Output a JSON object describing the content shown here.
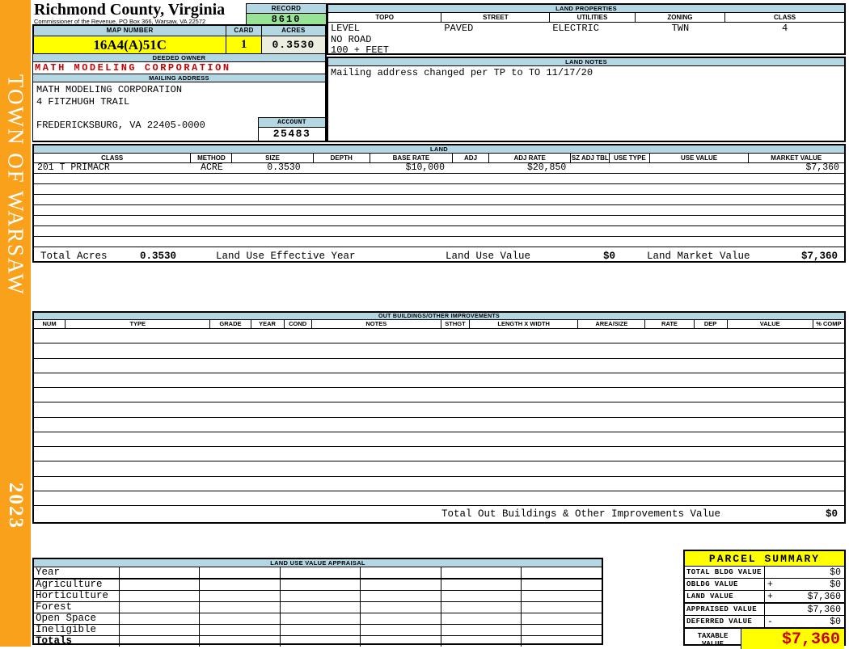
{
  "colors": {
    "sidebar_orange": "#F9A11B",
    "header_blue": "#B4D7E4",
    "record_green": "#97E497",
    "highlight_yellow": "#FFFF00",
    "alert_red": "#CC0000",
    "acres_cream": "#EDEEE2"
  },
  "sidebar": {
    "title": "TOWN OF WARSAW",
    "year": "2023"
  },
  "header": {
    "county_title": "Richmond County, Virginia",
    "commissioner_line": "Commissioner of the Revenue, PO Box 366, Warsaw, VA 22572",
    "record_label": "RECORD",
    "record_value": "8610",
    "map_number_label": "MAP NUMBER",
    "map_number_value": "16A4(A)51C",
    "card_label": "CARD",
    "card_value": "1",
    "acres_label": "ACRES",
    "acres_value": "0.3530"
  },
  "land_properties": {
    "title": "LAND PROPERTIES",
    "columns": [
      "TOPO",
      "STREET",
      "UTILITIES",
      "ZONING",
      "CLASS"
    ],
    "values": {
      "topo": [
        "LEVEL",
        "NO ROAD",
        "100 + FEET"
      ],
      "street": "PAVED",
      "utilities": "ELECTRIC",
      "zoning": "TWN",
      "class": "4"
    }
  },
  "owner": {
    "deeded_owner_label": "DEEDED OWNER",
    "deeded_owner": "MATH MODELING CORPORATION",
    "mailing_address_label": "MAILING ADDRESS",
    "address_lines": [
      "MATH MODELING CORPORATION",
      "4 FITZHUGH TRAIL",
      "",
      "FREDERICKSBURG, VA 22405-0000"
    ],
    "account_label": "ACCOUNT",
    "account_value": "25483"
  },
  "land_notes": {
    "title": "LAND NOTES",
    "note": "Mailing address changed per TP to TO 11/17/20"
  },
  "land": {
    "title": "LAND",
    "columns": [
      "CLASS",
      "METHOD",
      "SIZE",
      "DEPTH",
      "BASE RATE",
      "ADJ",
      "ADJ RATE",
      "SZ ADJ TBL",
      "USE TYPE",
      "USE VALUE",
      "MARKET VALUE"
    ],
    "rows": [
      [
        "201 T PRIMACR",
        "ACRE",
        "0.3530",
        "",
        "$10,000",
        "",
        "$20,850",
        "",
        "",
        "",
        "$7,360"
      ]
    ],
    "empty_row_count": 7,
    "totals": {
      "total_acres_label": "Total Acres",
      "total_acres": "0.3530",
      "effective_year_label": "Land Use Effective Year",
      "use_value_label": "Land Use Value",
      "use_value": "$0",
      "market_value_label": "Land Market Value",
      "market_value": "$7,360"
    }
  },
  "out_buildings": {
    "title": "OUT BUILDINGS/OTHER IMPROVEMENTS",
    "columns": [
      "NUM",
      "TYPE",
      "GRADE",
      "YEAR",
      "COND",
      "NOTES",
      "STHGT",
      "LENGTH X WIDTH",
      "AREA/SIZE",
      "RATE",
      "DEP",
      "VALUE",
      "% COMP"
    ],
    "empty_row_count": 12,
    "total_label": "Total Out Buildings & Other Improvements Value",
    "total_value": "$0"
  },
  "land_use_appraisal": {
    "title": "LAND USE VALUE APPRAISAL",
    "row_labels": [
      "Year",
      "Agriculture",
      "Horticulture",
      "Forest",
      "Open Space",
      "Ineligible",
      "Totals"
    ],
    "column_count": 6
  },
  "parcel_summary": {
    "title": "PARCEL SUMMARY",
    "rows": [
      {
        "label": "TOTAL BLDG VALUE",
        "op": "",
        "value": "$0"
      },
      {
        "label": "OBLDG VALUE",
        "op": "+",
        "value": "$0"
      },
      {
        "label": "LAND VALUE",
        "op": "+",
        "value": "$7,360"
      },
      {
        "label": "APPRAISED VALUE",
        "op": "",
        "value": "$7,360"
      },
      {
        "label": "DEFERRED VALUE",
        "op": "-",
        "value": "$0"
      }
    ],
    "taxable_label": "TAXABLE VALUE",
    "taxable_value": "$7,360"
  }
}
